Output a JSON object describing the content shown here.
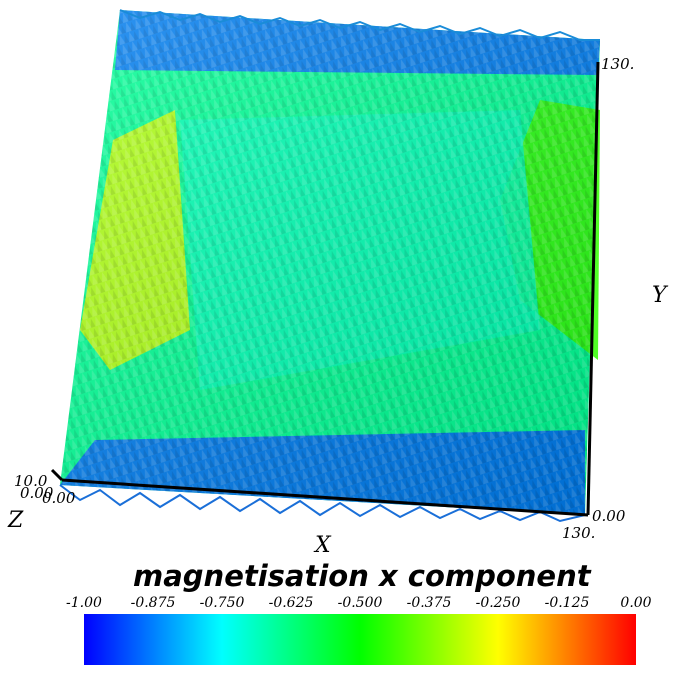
{
  "chart_data": {
    "type": "heatmap",
    "title": "magnetisation x component",
    "rendering": "3D glyph field (cones) coloured by magnetisation x component",
    "colormap": "rainbow (blue-cyan-green-yellow-red)",
    "axes": {
      "x": {
        "label": "X",
        "ticks": [
          "0.00",
          "130."
        ]
      },
      "y": {
        "label": "Y",
        "ticks": [
          "0.00",
          "130."
        ]
      },
      "z": {
        "label": "Z",
        "ticks": [
          "0.00",
          "10.0"
        ]
      }
    },
    "colorbar": {
      "range": [
        -1.0,
        0.0
      ],
      "ticks": [
        "-1.00",
        "-0.875",
        "-0.750",
        "-0.625",
        "-0.500",
        "-0.375",
        "-0.250",
        "-0.125",
        "0.00"
      ]
    },
    "field_regions": [
      {
        "region": "top edge",
        "value": -0.9
      },
      {
        "region": "bottom edge",
        "value": -0.9
      },
      {
        "region": "left band",
        "value": -0.3
      },
      {
        "region": "right band",
        "value": -0.45
      },
      {
        "region": "centre",
        "value": -0.68
      }
    ],
    "colors": {
      "min": "#0000ff",
      "q1": "#00ffff",
      "mid": "#00ff00",
      "q3": "#ffff00",
      "max": "#ff0000"
    }
  }
}
